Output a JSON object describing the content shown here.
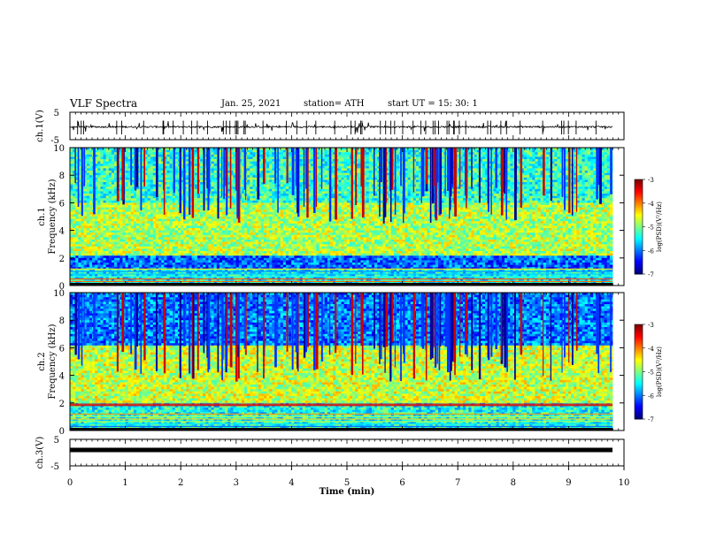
{
  "header": {
    "title": "VLF Spectra",
    "date": "Jan. 25, 2021",
    "station": "station= ATH",
    "start": "start  UT =   15: 30: 1"
  },
  "colors": {
    "colormap": [
      "#00007f",
      "#0000ff",
      "#007fff",
      "#00ffff",
      "#7fff7f",
      "#ffff00",
      "#ff7f00",
      "#ff0000",
      "#7f0000"
    ],
    "signal_trace": "#000000",
    "ch3_bar": "#000000"
  },
  "chart_data": [
    {
      "type": "line",
      "panel": "ch1-waveform",
      "ylabel": "ch.1(V)",
      "ylim": [
        -5,
        5
      ],
      "y_ticks": [
        "5",
        "-5"
      ],
      "xlim": [
        0,
        10
      ],
      "description_values": {
        "baseline": 0,
        "typical_amplitude": 0.6,
        "spike_amplitude": 2.0
      }
    },
    {
      "type": "heatmap",
      "panel": "ch1-spectrogram",
      "ylabel": "ch.1\nFrequency (kHz)",
      "ylim": [
        0,
        10
      ],
      "y_ticks": [
        "0",
        "2",
        "4",
        "6",
        "8",
        "10"
      ],
      "xlim": [
        0,
        9.8
      ],
      "colorbar": {
        "label": "log(PSD)(V²/Hz)",
        "range": [
          -7,
          -3
        ],
        "ticks": [
          "-3",
          "-4",
          "-5",
          "-6",
          "-7"
        ]
      },
      "bands_khz": [
        {
          "from": 0,
          "to": 1.2,
          "level": -5.5,
          "note": "dense narrowband lines"
        },
        {
          "from": 1.2,
          "to": 2.1,
          "level": -6.1
        },
        {
          "from": 2.1,
          "to": 6.0,
          "level": -4.8
        },
        {
          "from": 6.0,
          "to": 10,
          "level": -5.3
        }
      ]
    },
    {
      "type": "heatmap",
      "panel": "ch2-spectrogram",
      "ylabel": "ch.2\nFrequency (kHz)",
      "ylim": [
        0,
        10
      ],
      "y_ticks": [
        "0",
        "2",
        "4",
        "6",
        "8",
        "10"
      ],
      "xlim": [
        0,
        9.8
      ],
      "colorbar": {
        "label": "log(PSD)(V²/Hz)",
        "range": [
          -7,
          -3
        ],
        "ticks": [
          "-3",
          "-4",
          "-5",
          "-6",
          "-7"
        ]
      },
      "bands_khz": [
        {
          "from": 0,
          "to": 2.0,
          "level": -5.4,
          "note": "narrowband lines near 1.8-2.0 kHz"
        },
        {
          "from": 2.0,
          "to": 6.2,
          "level": -4.7
        },
        {
          "from": 6.2,
          "to": 10,
          "level": -6.0
        }
      ]
    },
    {
      "type": "line",
      "panel": "ch3-waveform",
      "ylabel": "ch.3(V)",
      "ylim": [
        -5,
        5
      ],
      "y_ticks": [
        "5",
        "-5"
      ],
      "xlim": [
        0,
        10
      ],
      "xlabel": "Time  (min)",
      "x_ticks": [
        "0",
        "1",
        "2",
        "3",
        "4",
        "5",
        "6",
        "7",
        "8",
        "9",
        "10"
      ],
      "description_values": {
        "level": 0
      }
    }
  ]
}
